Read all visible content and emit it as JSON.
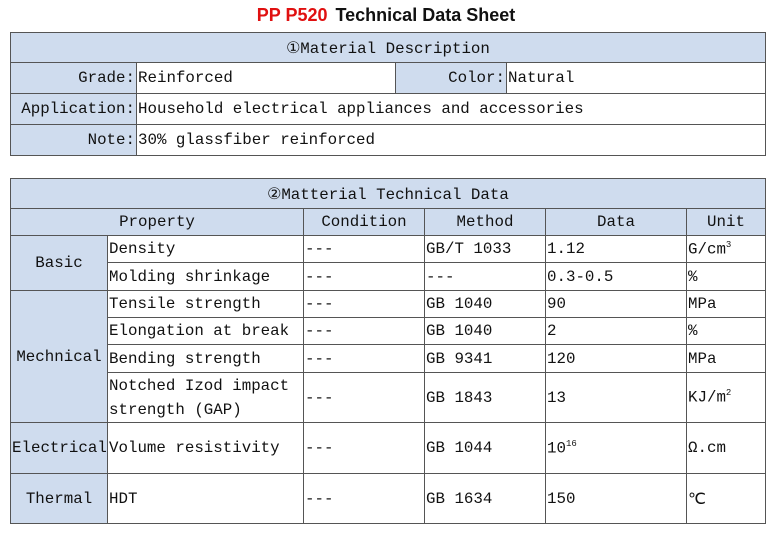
{
  "title": {
    "product": "PP  P520",
    "text": "Technical Data Sheet"
  },
  "description": {
    "heading": "①Material Description",
    "grade_label": "Grade:",
    "grade": "Reinforced",
    "color_label": "Color:",
    "color": "Natural",
    "application_label": "Application:",
    "application": "Household electrical appliances and accessories",
    "note_label": "Note:",
    "note": "30% glassfiber reinforced"
  },
  "technical": {
    "heading": "②Matterial Technical Data",
    "columns": [
      "Property",
      "Condition",
      "Method",
      "Data",
      "Unit"
    ],
    "groups": [
      "Basic",
      "Mechnical",
      "Electrical",
      "Thermal"
    ],
    "rows": [
      {
        "property": "Density",
        "condition": "---",
        "method": "GB/T 1033",
        "data": "1.12",
        "unit": "G/cm",
        "unit_sup": "3"
      },
      {
        "property": "Molding shrinkage",
        "condition": "---",
        "method": "---",
        "data": "0.3-0.5",
        "unit": "%"
      },
      {
        "property": "Tensile strength",
        "condition": "---",
        "method": "GB 1040",
        "data": "90",
        "unit": "MPa"
      },
      {
        "property": "Elongation at break",
        "condition": "---",
        "method": "GB 1040",
        "data": "2",
        "unit": "%"
      },
      {
        "property": "Bending strength",
        "condition": "---",
        "method": "GB 9341",
        "data": "120",
        "unit": "MPa"
      },
      {
        "property": "Notched Izod impact strength (GAP)",
        "condition": "---",
        "method": "GB 1843",
        "data": "13",
        "unit": "KJ/m",
        "unit_sup": "2"
      },
      {
        "property": "Volume resistivity",
        "condition": "---",
        "method": "GB 1044",
        "data": "10",
        "data_sup": "16",
        "unit": "Ω.cm"
      },
      {
        "property": "HDT",
        "condition": "---",
        "method": "GB 1634",
        "data": "150",
        "unit": "℃"
      }
    ]
  },
  "colors": {
    "header_bg": "#cfdcee",
    "title_accent": "#e01010"
  }
}
